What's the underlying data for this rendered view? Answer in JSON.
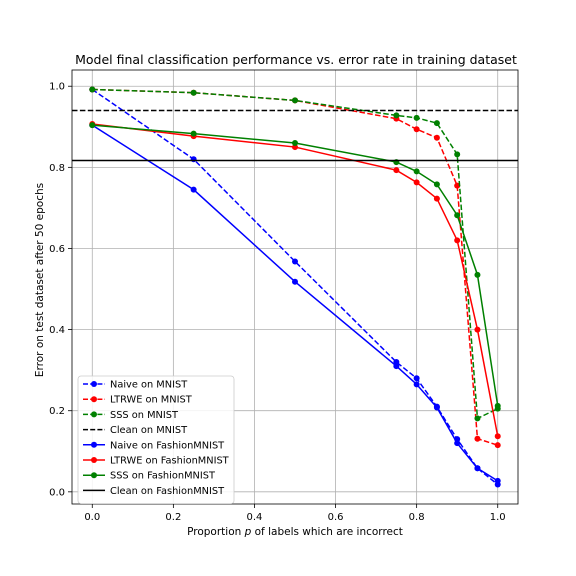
{
  "chart_data": {
    "type": "line",
    "title": "Model final classification performance vs. error rate in training dataset",
    "xlabel": "Proportion p of labels which are incorrect",
    "ylabel": "Error on test dataset after 50 epochs",
    "xlim": [
      -0.05,
      1.05
    ],
    "ylim": [
      -0.03,
      1.04
    ],
    "x_ticks": [
      0.0,
      0.2,
      0.4,
      0.6,
      0.8,
      1.0
    ],
    "y_ticks": [
      0.0,
      0.2,
      0.4,
      0.6,
      0.8,
      1.0
    ],
    "x_tick_labels": [
      "0.0",
      "0.2",
      "0.4",
      "0.6",
      "0.8",
      "1.0"
    ],
    "y_tick_labels": [
      "0.0",
      "0.2",
      "0.4",
      "0.6",
      "0.8",
      "1.0"
    ],
    "grid": true,
    "legend_position": "lower-left",
    "x": [
      0.0,
      0.25,
      0.5,
      0.75,
      0.8,
      0.85,
      0.9,
      0.95,
      1.0
    ],
    "series": [
      {
        "name": "Naive on MNIST",
        "color": "#0000ff",
        "style": "dashed",
        "marker": true,
        "values": [
          0.992,
          0.82,
          0.568,
          0.32,
          0.28,
          0.21,
          0.13,
          0.058,
          0.018
        ]
      },
      {
        "name": "LTRWE on MNIST",
        "color": "#ff0000",
        "style": "dashed",
        "marker": true,
        "values": [
          0.992,
          0.984,
          0.965,
          0.92,
          0.894,
          0.873,
          0.755,
          0.131,
          0.115
        ]
      },
      {
        "name": "SSS on MNIST",
        "color": "#008000",
        "style": "dashed",
        "marker": true,
        "values": [
          0.992,
          0.984,
          0.965,
          0.928,
          0.922,
          0.909,
          0.832,
          0.181,
          0.205
        ]
      },
      {
        "name": "Clean on MNIST",
        "color": "#000000",
        "style": "dashed",
        "marker": false,
        "hline": 0.94
      },
      {
        "name": "Naive on FashionMNIST",
        "color": "#0000ff",
        "style": "solid",
        "marker": true,
        "values": [
          0.904,
          0.745,
          0.518,
          0.31,
          0.265,
          0.208,
          0.12,
          0.058,
          0.027
        ]
      },
      {
        "name": "LTRWE on FashionMNIST",
        "color": "#ff0000",
        "style": "solid",
        "marker": true,
        "values": [
          0.907,
          0.877,
          0.85,
          0.793,
          0.763,
          0.723,
          0.62,
          0.4,
          0.137
        ]
      },
      {
        "name": "SSS on FashionMNIST",
        "color": "#008000",
        "style": "solid",
        "marker": true,
        "values": [
          0.904,
          0.883,
          0.86,
          0.813,
          0.79,
          0.758,
          0.682,
          0.535,
          0.212
        ]
      },
      {
        "name": "Clean on FashionMNIST",
        "color": "#000000",
        "style": "solid",
        "marker": false,
        "hline": 0.817
      }
    ]
  }
}
